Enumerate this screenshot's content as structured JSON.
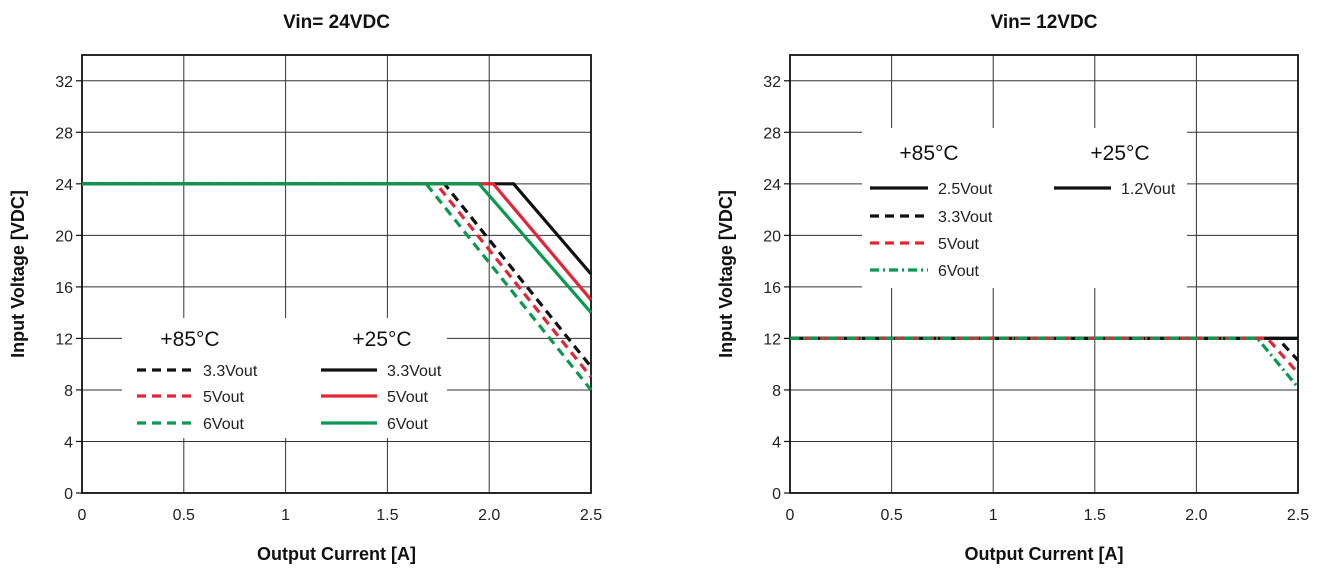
{
  "chart_data": [
    {
      "type": "line",
      "title": "Vin= 24VDC",
      "xlabel": "Output Current [A]",
      "ylabel": "Input Voltage [VDC]",
      "xlim": [
        0,
        2.5
      ],
      "ylim": [
        0,
        34
      ],
      "x_ticks": [
        "0",
        "0.5",
        "1",
        "1.5",
        "2.0",
        "2.5"
      ],
      "y_ticks": [
        "0",
        "4",
        "8",
        "12",
        "16",
        "20",
        "24",
        "28",
        "32"
      ],
      "grid": true,
      "legend": {
        "placement": "bottom-left",
        "groups": [
          {
            "heading": "+85°C",
            "entries": [
              "3.3Vout",
              "5Vout",
              "6Vout"
            ]
          },
          {
            "heading": "+25°C",
            "entries": [
              "3.3Vout",
              "5Vout",
              "6Vout"
            ]
          }
        ]
      },
      "series": [
        {
          "name": "+85°C 3.3Vout",
          "color": "#111111",
          "dash": "dashed",
          "points": [
            [
              0,
              24
            ],
            [
              1.78,
              24
            ],
            [
              2.5,
              9.8
            ]
          ]
        },
        {
          "name": "+85°C 5Vout",
          "color": "#e32636",
          "dash": "dashed",
          "points": [
            [
              0,
              24
            ],
            [
              1.74,
              24
            ],
            [
              2.5,
              9.0
            ]
          ]
        },
        {
          "name": "+85°C 6Vout",
          "color": "#0a9950",
          "dash": "dashed",
          "points": [
            [
              0,
              24
            ],
            [
              1.69,
              24
            ],
            [
              2.5,
              8.0
            ]
          ]
        },
        {
          "name": "+25°C 3.3Vout",
          "color": "#111111",
          "dash": "solid",
          "points": [
            [
              0,
              24
            ],
            [
              2.12,
              24
            ],
            [
              2.5,
              17.0
            ]
          ]
        },
        {
          "name": "+25°C 5Vout",
          "color": "#e32636",
          "dash": "solid",
          "points": [
            [
              0,
              24
            ],
            [
              2.02,
              24
            ],
            [
              2.5,
              15.0
            ]
          ]
        },
        {
          "name": "+25°C 6Vout",
          "color": "#0a9950",
          "dash": "solid",
          "points": [
            [
              0,
              24
            ],
            [
              1.95,
              24
            ],
            [
              2.5,
              14.0
            ]
          ]
        }
      ]
    },
    {
      "type": "line",
      "title": "Vin= 12VDC",
      "xlabel": "Output Current [A]",
      "ylabel": "Input Voltage [VDC]",
      "xlim": [
        0,
        2.5
      ],
      "ylim": [
        0,
        34
      ],
      "x_ticks": [
        "0",
        "0.5",
        "1",
        "1.5",
        "2.0",
        "2.5"
      ],
      "y_ticks": [
        "0",
        "4",
        "8",
        "12",
        "16",
        "20",
        "24",
        "28",
        "32"
      ],
      "grid": true,
      "legend": {
        "placement": "top",
        "groups": [
          {
            "heading": "+85°C",
            "entries": [
              "2.5Vout",
              "3.3Vout",
              "5Vout",
              "6Vout"
            ]
          },
          {
            "heading": "+25°C",
            "entries": [
              "1.2Vout"
            ]
          }
        ]
      },
      "series": [
        {
          "name": "+85°C 2.5Vout",
          "color": "#111111",
          "dash": "solid",
          "points": [
            [
              0,
              12
            ],
            [
              2.5,
              12
            ]
          ]
        },
        {
          "name": "+25°C 1.2Vout",
          "color": "#111111",
          "dash": "solid",
          "points": [
            [
              0,
              12
            ],
            [
              2.5,
              12
            ]
          ]
        },
        {
          "name": "+85°C 3.3Vout",
          "color": "#111111",
          "dash": "dashed",
          "points": [
            [
              0,
              12
            ],
            [
              2.4,
              12
            ],
            [
              2.5,
              10.3
            ]
          ]
        },
        {
          "name": "+85°C 5Vout",
          "color": "#e32636",
          "dash": "dashed",
          "points": [
            [
              0,
              12
            ],
            [
              2.35,
              12
            ],
            [
              2.5,
              9.3
            ]
          ]
        },
        {
          "name": "+85°C 6Vout",
          "color": "#0a9950",
          "dash": "dashdot",
          "points": [
            [
              0,
              12
            ],
            [
              2.3,
              12
            ],
            [
              2.5,
              8.2
            ]
          ]
        }
      ]
    }
  ]
}
